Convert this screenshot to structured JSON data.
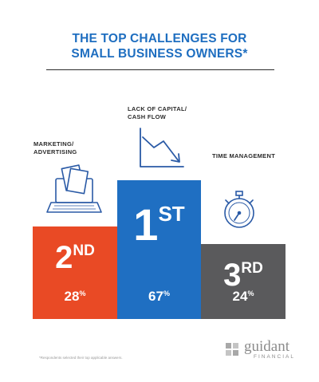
{
  "header": {
    "title_line1": "THE TOP CHALLENGES FOR",
    "title_line2": "SMALL BUSINESS OWNERS*"
  },
  "chart_data": {
    "type": "bar",
    "title": "THE TOP CHALLENGES FOR SMALL BUSINESS OWNERS*",
    "categories": [
      "MARKETING/ ADVERTISING",
      "LACK OF CAPITAL/ CASH FLOW",
      "TIME MANAGEMENT"
    ],
    "category_lines": [
      [
        "MARKETING/",
        "ADVERTISING"
      ],
      [
        "LACK OF CAPITAL/",
        "CASH FLOW"
      ],
      [
        "TIME MANAGEMENT"
      ]
    ],
    "values": [
      28,
      67,
      24
    ],
    "unit": "%",
    "ranks": [
      {
        "num": "2",
        "suffix": "ND"
      },
      {
        "num": "1",
        "suffix": "ST"
      },
      {
        "num": "3",
        "suffix": "RD"
      }
    ],
    "colors": [
      "#e94a25",
      "#1f6fc2",
      "#5a5a5c"
    ],
    "icons": [
      "laptop-documents-icon",
      "declining-graph-icon",
      "stopwatch-icon"
    ],
    "legend": "none",
    "grid": false
  },
  "footer": {
    "footnote": "*Respondents selected their top applicable answers.",
    "logo_word": "guidant",
    "logo_sub": "FINANCIAL"
  }
}
